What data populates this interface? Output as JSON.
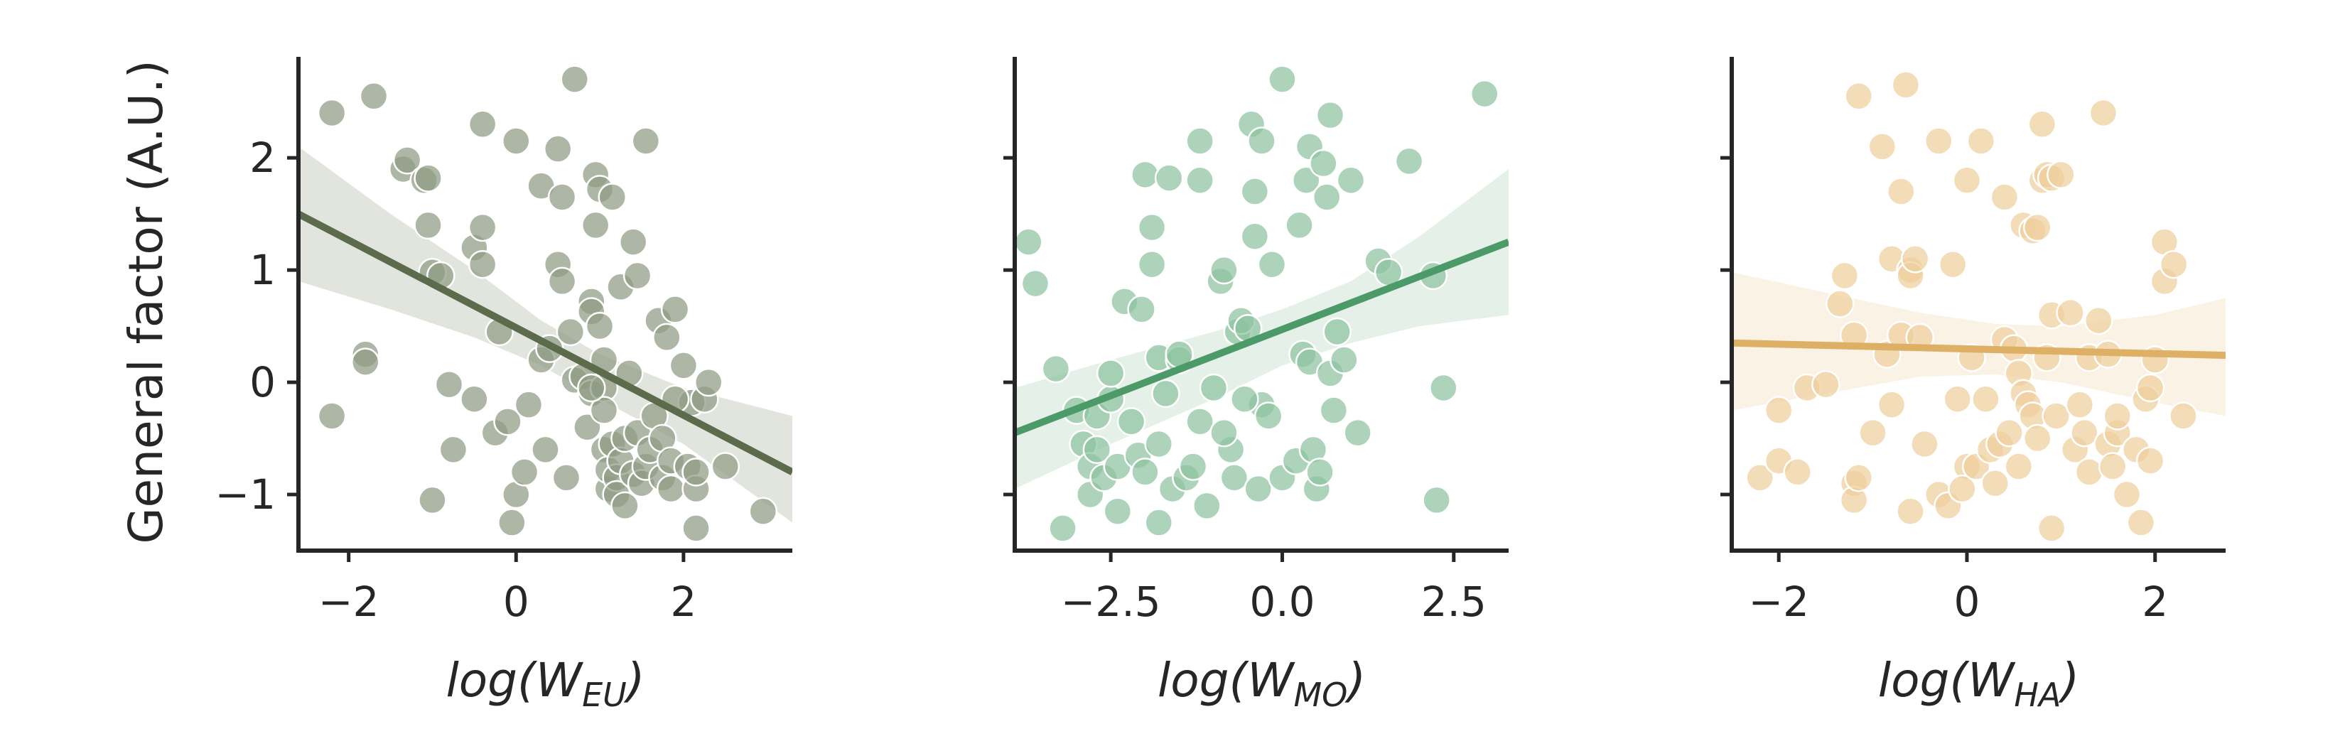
{
  "chart_data": [
    {
      "type": "scatter",
      "ylabel": "General factor (A.U.)",
      "xlabel": {
        "prefix": "log(W",
        "sub": "EU",
        "suffix": ")"
      },
      "xlim": [
        -2.6,
        3.3
      ],
      "ylim": [
        -1.5,
        2.9
      ],
      "xticks": [
        -2,
        0,
        2
      ],
      "xtick_labels": [
        "−2",
        "0",
        "2"
      ],
      "yticks": [
        -1,
        0,
        1,
        2
      ],
      "ytick_labels": [
        "−1",
        "0",
        "1",
        "2"
      ],
      "color": "#5b6b4c",
      "point_color": "#8f9b84",
      "band_color": "#c8d0c2",
      "regression": {
        "x": [
          -2.6,
          3.3
        ],
        "y": [
          1.5,
          -0.8
        ]
      },
      "band": {
        "x": [
          -2.6,
          -1.5,
          -0.5,
          0.3,
          1.0,
          2.0,
          3.3
        ],
        "upper": [
          2.1,
          1.5,
          1.0,
          0.55,
          0.25,
          -0.05,
          -0.3
        ],
        "lower": [
          0.9,
          0.65,
          0.4,
          0.15,
          -0.15,
          -0.55,
          -1.25
        ]
      },
      "points": [
        [
          -2.2,
          2.4
        ],
        [
          -1.7,
          2.55
        ],
        [
          -2.2,
          -0.3
        ],
        [
          -1.8,
          0.25
        ],
        [
          -1.8,
          0.18
        ],
        [
          -1.35,
          1.9
        ],
        [
          -1.3,
          1.98
        ],
        [
          -1.1,
          1.8
        ],
        [
          -1.05,
          1.82
        ],
        [
          -1.05,
          1.4
        ],
        [
          -1.0,
          0.98
        ],
        [
          -0.9,
          0.95
        ],
        [
          -1.0,
          -1.05
        ],
        [
          -0.8,
          -0.02
        ],
        [
          -0.75,
          -0.6
        ],
        [
          -0.5,
          1.2
        ],
        [
          -0.4,
          1.38
        ],
        [
          -0.4,
          1.05
        ],
        [
          -0.5,
          -0.15
        ],
        [
          -0.4,
          2.3
        ],
        [
          -0.25,
          -0.45
        ],
        [
          -0.1,
          -0.35
        ],
        [
          -0.2,
          0.45
        ],
        [
          0.0,
          2.15
        ],
        [
          0.0,
          -1.0
        ],
        [
          -0.05,
          -1.25
        ],
        [
          0.1,
          -0.8
        ],
        [
          0.15,
          -0.2
        ],
        [
          0.3,
          0.2
        ],
        [
          0.3,
          1.75
        ],
        [
          0.35,
          -0.6
        ],
        [
          0.4,
          0.3
        ],
        [
          0.5,
          2.08
        ],
        [
          0.5,
          1.05
        ],
        [
          0.55,
          0.9
        ],
        [
          0.55,
          1.65
        ],
        [
          0.6,
          -0.85
        ],
        [
          0.65,
          0.45
        ],
        [
          0.7,
          2.7
        ],
        [
          0.7,
          0.02
        ],
        [
          0.8,
          0.05
        ],
        [
          0.85,
          -0.4
        ],
        [
          0.9,
          0.72
        ],
        [
          0.9,
          0.63
        ],
        [
          0.9,
          -0.1
        ],
        [
          0.95,
          1.85
        ],
        [
          0.95,
          1.4
        ],
        [
          1.0,
          0.5
        ],
        [
          1.0,
          1.72
        ],
        [
          1.05,
          0.2
        ],
        [
          1.05,
          -0.05
        ],
        [
          1.05,
          -0.25
        ],
        [
          1.05,
          -0.6
        ],
        [
          1.1,
          -0.95
        ],
        [
          1.1,
          -0.78
        ],
        [
          1.15,
          1.65
        ],
        [
          1.15,
          -0.55
        ],
        [
          1.2,
          -0.85
        ],
        [
          1.2,
          -1.0
        ],
        [
          1.25,
          0.85
        ],
        [
          1.25,
          -0.7
        ],
        [
          1.3,
          -1.1
        ],
        [
          1.3,
          -0.5
        ],
        [
          1.35,
          0.08
        ],
        [
          1.4,
          -0.82
        ],
        [
          1.4,
          1.25
        ],
        [
          1.45,
          0.95
        ],
        [
          1.45,
          -0.45
        ],
        [
          1.5,
          -0.9
        ],
        [
          1.55,
          2.15
        ],
        [
          1.55,
          -0.75
        ],
        [
          1.6,
          -0.6
        ],
        [
          1.65,
          -0.3
        ],
        [
          1.7,
          0.55
        ],
        [
          1.75,
          -0.5
        ],
        [
          1.75,
          -0.85
        ],
        [
          1.8,
          0.4
        ],
        [
          1.85,
          -0.95
        ],
        [
          1.85,
          -0.7
        ],
        [
          1.9,
          0.65
        ],
        [
          2.0,
          0.15
        ],
        [
          2.05,
          -0.75
        ],
        [
          2.1,
          -0.18
        ],
        [
          2.15,
          -0.95
        ],
        [
          2.15,
          -0.8
        ],
        [
          2.25,
          -0.15
        ],
        [
          2.3,
          0.0
        ],
        [
          2.15,
          -1.3
        ],
        [
          2.5,
          -0.75
        ],
        [
          2.95,
          -1.15
        ],
        [
          1.9,
          -0.15
        ],
        [
          0.9,
          -0.05
        ]
      ]
    },
    {
      "type": "scatter",
      "xlabel": {
        "prefix": "log(W",
        "sub": "MO",
        "suffix": ")"
      },
      "xlim": [
        -3.9,
        3.3
      ],
      "ylim": [
        -1.5,
        2.9
      ],
      "xticks": [
        -2.5,
        0.0,
        2.5
      ],
      "xtick_labels": [
        "−2.5",
        "0.0",
        "2.5"
      ],
      "yticks": [
        -1,
        0,
        1,
        2
      ],
      "color": "#4c9a68",
      "point_color": "#8ec4a0",
      "band_color": "#cfe5d6",
      "regression": {
        "x": [
          -3.9,
          3.3
        ],
        "y": [
          -0.45,
          1.25
        ]
      },
      "band": {
        "x": [
          -3.9,
          -2.5,
          -1.0,
          0.0,
          1.0,
          2.0,
          3.3
        ],
        "upper": [
          -0.05,
          0.2,
          0.45,
          0.65,
          0.9,
          1.3,
          1.9
        ],
        "lower": [
          -0.95,
          -0.55,
          -0.15,
          0.15,
          0.35,
          0.5,
          0.6
        ]
      },
      "points": [
        [
          -3.7,
          1.25
        ],
        [
          -3.6,
          0.88
        ],
        [
          -3.3,
          0.12
        ],
        [
          -3.2,
          -1.3
        ],
        [
          -3.0,
          -0.25
        ],
        [
          -2.9,
          -0.55
        ],
        [
          -2.8,
          -0.75
        ],
        [
          -2.8,
          -1.0
        ],
        [
          -2.7,
          -0.3
        ],
        [
          -2.7,
          -0.6
        ],
        [
          -2.6,
          -0.85
        ],
        [
          -2.5,
          -0.15
        ],
        [
          -2.5,
          0.08
        ],
        [
          -2.4,
          -0.75
        ],
        [
          -2.4,
          -1.15
        ],
        [
          -2.3,
          0.72
        ],
        [
          -2.1,
          -0.65
        ],
        [
          -2.05,
          0.65
        ],
        [
          -2.0,
          1.85
        ],
        [
          -2.0,
          -0.8
        ],
        [
          -1.9,
          1.38
        ],
        [
          -1.9,
          1.05
        ],
        [
          -1.8,
          0.22
        ],
        [
          -1.8,
          -0.55
        ],
        [
          -1.8,
          -1.25
        ],
        [
          -1.7,
          -0.1
        ],
        [
          -1.65,
          1.82
        ],
        [
          -1.6,
          -0.95
        ],
        [
          -1.5,
          0.2
        ],
        [
          -1.5,
          0.25
        ],
        [
          -1.4,
          -0.85
        ],
        [
          -1.3,
          -0.75
        ],
        [
          -1.2,
          -0.35
        ],
        [
          -1.2,
          2.15
        ],
        [
          -1.2,
          1.8
        ],
        [
          -1.1,
          -1.1
        ],
        [
          -1.0,
          -0.05
        ],
        [
          -0.9,
          0.9
        ],
        [
          -0.85,
          1.0
        ],
        [
          -0.75,
          -0.6
        ],
        [
          -0.7,
          -0.85
        ],
        [
          -0.65,
          0.45
        ],
        [
          -0.6,
          0.55
        ],
        [
          -0.5,
          0.48
        ],
        [
          -0.45,
          2.3
        ],
        [
          -0.4,
          1.7
        ],
        [
          -0.4,
          1.3
        ],
        [
          -0.35,
          -0.95
        ],
        [
          -0.3,
          2.15
        ],
        [
          -0.3,
          -0.2
        ],
        [
          -0.2,
          -0.3
        ],
        [
          -0.15,
          1.05
        ],
        [
          0.0,
          2.7
        ],
        [
          0.0,
          -0.85
        ],
        [
          0.2,
          -0.7
        ],
        [
          0.25,
          1.4
        ],
        [
          0.3,
          0.25
        ],
        [
          0.35,
          1.8
        ],
        [
          0.4,
          2.1
        ],
        [
          0.4,
          0.18
        ],
        [
          0.45,
          -0.6
        ],
        [
          0.5,
          -0.95
        ],
        [
          0.55,
          -0.8
        ],
        [
          0.6,
          1.95
        ],
        [
          0.65,
          1.65
        ],
        [
          0.7,
          2.38
        ],
        [
          0.7,
          0.08
        ],
        [
          0.75,
          -0.25
        ],
        [
          0.8,
          0.45
        ],
        [
          0.9,
          0.2
        ],
        [
          1.0,
          1.8
        ],
        [
          1.1,
          -0.45
        ],
        [
          1.4,
          1.08
        ],
        [
          1.55,
          0.98
        ],
        [
          1.85,
          1.97
        ],
        [
          2.2,
          0.95
        ],
        [
          2.25,
          -1.05
        ],
        [
          2.35,
          -0.05
        ],
        [
          2.95,
          2.57
        ],
        [
          -0.85,
          -0.45
        ],
        [
          -2.2,
          -0.35
        ],
        [
          -0.55,
          -0.15
        ]
      ]
    },
    {
      "type": "scatter",
      "xlabel": {
        "prefix": "log(W",
        "sub": "HA",
        "suffix": ")"
      },
      "xlim": [
        -2.5,
        2.75
      ],
      "ylim": [
        -1.5,
        2.9
      ],
      "xticks": [
        -2,
        0,
        2
      ],
      "xtick_labels": [
        "−2",
        "0",
        "2"
      ],
      "yticks": [
        -1,
        0,
        1,
        2
      ],
      "color": "#deb066",
      "point_color": "#efcf9c",
      "band_color": "#f7e8d2",
      "regression": {
        "x": [
          -2.5,
          2.75
        ],
        "y": [
          0.35,
          0.24
        ]
      },
      "band": {
        "x": [
          -2.5,
          -1.5,
          -0.5,
          0.3,
          1.0,
          2.0,
          2.75
        ],
        "upper": [
          0.98,
          0.8,
          0.62,
          0.52,
          0.5,
          0.6,
          0.75
        ],
        "lower": [
          -0.25,
          -0.1,
          0.05,
          0.07,
          0.0,
          -0.18,
          -0.3
        ]
      },
      "points": [
        [
          -2.2,
          -0.85
        ],
        [
          -2.0,
          -0.25
        ],
        [
          -2.0,
          -0.7
        ],
        [
          -1.8,
          -0.8
        ],
        [
          -1.7,
          -0.05
        ],
        [
          -1.5,
          -0.02
        ],
        [
          -1.35,
          0.7
        ],
        [
          -1.3,
          0.95
        ],
        [
          -1.2,
          -0.9
        ],
        [
          -1.2,
          -1.05
        ],
        [
          -1.2,
          0.42
        ],
        [
          -1.15,
          2.55
        ],
        [
          -1.15,
          -0.85
        ],
        [
          -1.0,
          -0.45
        ],
        [
          -0.9,
          2.1
        ],
        [
          -0.85,
          0.25
        ],
        [
          -0.8,
          1.1
        ],
        [
          -0.8,
          -0.2
        ],
        [
          -0.7,
          0.42
        ],
        [
          -0.7,
          1.7
        ],
        [
          -0.65,
          2.65
        ],
        [
          -0.6,
          1.0
        ],
        [
          -0.6,
          0.95
        ],
        [
          -0.6,
          -1.15
        ],
        [
          -0.55,
          1.1
        ],
        [
          -0.5,
          0.4
        ],
        [
          -0.45,
          -0.55
        ],
        [
          -0.3,
          2.15
        ],
        [
          -0.3,
          -1.0
        ],
        [
          -0.2,
          -1.1
        ],
        [
          -0.15,
          1.05
        ],
        [
          -0.1,
          -0.15
        ],
        [
          0.0,
          1.8
        ],
        [
          0.0,
          -0.75
        ],
        [
          -0.05,
          -0.95
        ],
        [
          0.05,
          0.22
        ],
        [
          0.1,
          -0.75
        ],
        [
          0.15,
          2.15
        ],
        [
          0.2,
          -0.15
        ],
        [
          0.25,
          -0.6
        ],
        [
          0.3,
          -0.9
        ],
        [
          0.35,
          -0.55
        ],
        [
          0.4,
          1.65
        ],
        [
          0.4,
          0.38
        ],
        [
          0.45,
          -0.45
        ],
        [
          0.5,
          0.3
        ],
        [
          0.55,
          -0.75
        ],
        [
          0.55,
          0.08
        ],
        [
          0.6,
          1.4
        ],
        [
          0.6,
          -0.1
        ],
        [
          0.65,
          -0.2
        ],
        [
          0.7,
          -0.3
        ],
        [
          0.7,
          1.35
        ],
        [
          0.75,
          1.38
        ],
        [
          0.75,
          -0.5
        ],
        [
          0.8,
          2.3
        ],
        [
          0.8,
          1.8
        ],
        [
          0.85,
          1.85
        ],
        [
          0.85,
          0.22
        ],
        [
          0.9,
          -1.3
        ],
        [
          0.9,
          1.82
        ],
        [
          0.9,
          0.6
        ],
        [
          0.95,
          -0.3
        ],
        [
          1.0,
          1.85
        ],
        [
          1.1,
          0.62
        ],
        [
          1.15,
          -0.6
        ],
        [
          1.2,
          -0.2
        ],
        [
          1.25,
          -0.45
        ],
        [
          1.3,
          0.22
        ],
        [
          1.3,
          -0.8
        ],
        [
          1.4,
          0.55
        ],
        [
          1.45,
          2.4
        ],
        [
          1.5,
          -0.55
        ],
        [
          1.5,
          0.25
        ],
        [
          1.55,
          -0.75
        ],
        [
          1.6,
          -0.45
        ],
        [
          1.7,
          -1.0
        ],
        [
          1.8,
          -0.6
        ],
        [
          1.85,
          -1.25
        ],
        [
          1.9,
          -0.15
        ],
        [
          1.95,
          -0.7
        ],
        [
          1.95,
          -0.05
        ],
        [
          2.0,
          0.2
        ],
        [
          2.1,
          0.9
        ],
        [
          2.1,
          1.25
        ],
        [
          2.2,
          1.05
        ],
        [
          2.3,
          -0.3
        ],
        [
          1.6,
          -0.3
        ]
      ]
    }
  ]
}
